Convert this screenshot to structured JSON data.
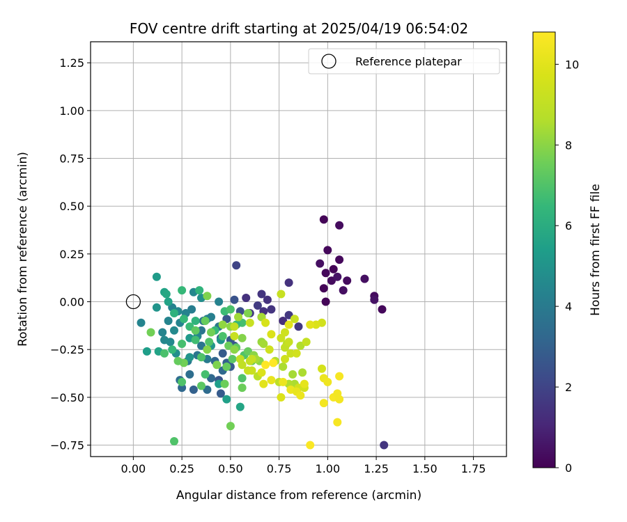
{
  "chart_data": {
    "type": "scatter",
    "title": "FOV centre drift starting at 2025/04/19 06:54:02",
    "xlabel": "Angular distance from reference (arcmin)",
    "ylabel": "Rotation from reference (arcmin)",
    "xlim": [
      -0.22,
      1.92
    ],
    "ylim": [
      -0.81,
      1.36
    ],
    "xticks": [
      0.0,
      0.25,
      0.5,
      0.75,
      1.0,
      1.25,
      1.5,
      1.75
    ],
    "xtick_labels": [
      "0.00",
      "0.25",
      "0.50",
      "0.75",
      "1.00",
      "1.25",
      "1.50",
      "1.75"
    ],
    "yticks": [
      -0.75,
      -0.5,
      -0.25,
      0.0,
      0.25,
      0.5,
      0.75,
      1.0,
      1.25
    ],
    "ytick_labels": [
      "−0.75",
      "−0.50",
      "−0.25",
      "0.00",
      "0.25",
      "0.50",
      "0.75",
      "1.00",
      "1.25"
    ],
    "grid": true,
    "legend": {
      "placement": "top-right",
      "entries": [
        "Reference platepar"
      ]
    },
    "reference_point": {
      "label": "Reference platepar",
      "x": 0.0,
      "y": 0.0
    },
    "colorbar": {
      "label": "Hours from first FF file",
      "colormap": "viridis",
      "range": [
        0,
        10.8
      ],
      "ticks": [
        0,
        2,
        4,
        6,
        8,
        10
      ],
      "tick_labels": [
        "0",
        "2",
        "4",
        "6",
        "8",
        "10"
      ]
    },
    "series": [
      {
        "fields": [
          "x",
          "y",
          "hours"
        ],
        "points": [
          [
            0.98,
            0.43,
            0.1
          ],
          [
            1.06,
            0.4,
            0.3
          ],
          [
            1.0,
            0.27,
            0.2
          ],
          [
            0.96,
            0.2,
            0.4
          ],
          [
            1.06,
            0.22,
            0.2
          ],
          [
            1.03,
            0.17,
            0.1
          ],
          [
            0.99,
            0.15,
            0.2
          ],
          [
            1.02,
            0.11,
            0.3
          ],
          [
            1.05,
            0.13,
            0.5
          ],
          [
            1.1,
            0.11,
            0.3
          ],
          [
            0.98,
            0.07,
            0.1
          ],
          [
            1.08,
            0.06,
            0.4
          ],
          [
            1.19,
            0.12,
            0.4
          ],
          [
            1.24,
            0.03,
            0.3
          ],
          [
            1.24,
            0.01,
            0.5
          ],
          [
            0.99,
            0.0,
            0.1
          ],
          [
            1.28,
            -0.04,
            0.2
          ],
          [
            1.29,
            -0.75,
            1.5
          ],
          [
            0.8,
            0.1,
            1.4
          ],
          [
            0.53,
            0.19,
            2.0
          ],
          [
            0.58,
            0.02,
            1.4
          ],
          [
            0.66,
            0.04,
            1.5
          ],
          [
            0.69,
            0.01,
            1.4
          ],
          [
            0.71,
            -0.04,
            1.5
          ],
          [
            0.64,
            -0.02,
            1.7
          ],
          [
            0.67,
            -0.05,
            1.4
          ],
          [
            0.77,
            -0.1,
            1.3
          ],
          [
            0.85,
            -0.13,
            1.6
          ],
          [
            0.8,
            -0.07,
            1.6
          ],
          [
            0.66,
            -0.08,
            1.6
          ],
          [
            0.6,
            -0.06,
            1.6
          ],
          [
            0.52,
            0.01,
            2.5
          ],
          [
            0.55,
            -0.05,
            2.4
          ],
          [
            0.48,
            -0.09,
            2.6
          ],
          [
            0.5,
            -0.2,
            2.7
          ],
          [
            0.45,
            -0.19,
            2.5
          ],
          [
            0.52,
            -0.23,
            2.6
          ],
          [
            0.46,
            -0.27,
            2.8
          ],
          [
            0.48,
            -0.32,
            3.0
          ],
          [
            0.42,
            -0.31,
            3.2
          ],
          [
            0.46,
            -0.36,
            3.3
          ],
          [
            0.5,
            -0.34,
            2.8
          ],
          [
            0.44,
            -0.41,
            2.6
          ],
          [
            0.4,
            -0.4,
            3.3
          ],
          [
            0.45,
            -0.48,
            2.8
          ],
          [
            0.38,
            -0.46,
            3.4
          ],
          [
            0.31,
            -0.46,
            3.0
          ],
          [
            0.25,
            -0.45,
            3.3
          ],
          [
            0.24,
            -0.41,
            3.5
          ],
          [
            0.29,
            -0.38,
            3.5
          ],
          [
            0.28,
            -0.31,
            4.0
          ],
          [
            0.33,
            -0.28,
            3.8
          ],
          [
            0.38,
            -0.3,
            4.0
          ],
          [
            0.35,
            -0.23,
            3.8
          ],
          [
            0.44,
            -0.13,
            3.9
          ],
          [
            0.35,
            -0.15,
            3.8
          ],
          [
            0.36,
            -0.1,
            3.7
          ],
          [
            0.38,
            -0.09,
            4.2
          ],
          [
            0.4,
            -0.08,
            4.2
          ],
          [
            0.3,
            -0.04,
            4.1
          ],
          [
            0.27,
            -0.06,
            4.3
          ],
          [
            0.23,
            -0.05,
            4.5
          ],
          [
            0.2,
            -0.03,
            4.3
          ],
          [
            0.18,
            -0.1,
            4.4
          ],
          [
            0.24,
            -0.11,
            4.4
          ],
          [
            0.21,
            -0.15,
            4.6
          ],
          [
            0.15,
            -0.16,
            4.4
          ],
          [
            0.16,
            -0.2,
            4.5
          ],
          [
            0.19,
            -0.21,
            4.6
          ],
          [
            0.31,
            0.05,
            4.5
          ],
          [
            0.35,
            0.02,
            4.8
          ],
          [
            0.44,
            0.0,
            4.3
          ],
          [
            0.04,
            -0.11,
            4.4
          ],
          [
            0.33,
            -0.18,
            4.5
          ],
          [
            0.22,
            -0.27,
            4.8
          ],
          [
            0.29,
            -0.29,
            5.0
          ],
          [
            0.12,
            -0.03,
            5.0
          ],
          [
            0.12,
            0.13,
            5.3
          ],
          [
            0.16,
            0.05,
            5.6
          ],
          [
            0.17,
            0.04,
            5.8
          ],
          [
            0.18,
            0.0,
            5.6
          ],
          [
            0.13,
            -0.26,
            5.6
          ],
          [
            0.07,
            -0.26,
            5.4
          ],
          [
            0.29,
            -0.19,
            5.2
          ],
          [
            0.4,
            -0.23,
            5.1
          ],
          [
            0.45,
            -0.2,
            5.0
          ],
          [
            0.44,
            -0.43,
            5.4
          ],
          [
            0.55,
            -0.55,
            5.7
          ],
          [
            0.48,
            -0.51,
            5.5
          ],
          [
            0.25,
            0.06,
            6.5
          ],
          [
            0.34,
            0.06,
            6.3
          ],
          [
            0.21,
            -0.06,
            6.2
          ],
          [
            0.26,
            -0.09,
            6.5
          ],
          [
            0.29,
            -0.13,
            6.6
          ],
          [
            0.32,
            -0.1,
            6.3
          ],
          [
            0.25,
            -0.22,
            6.8
          ],
          [
            0.2,
            -0.25,
            6.5
          ],
          [
            0.16,
            -0.27,
            6.9
          ],
          [
            0.32,
            -0.2,
            6.7
          ],
          [
            0.42,
            -0.15,
            6.5
          ],
          [
            0.47,
            -0.05,
            6.6
          ],
          [
            0.5,
            -0.04,
            6.9
          ],
          [
            0.56,
            -0.11,
            6.8
          ],
          [
            0.53,
            -0.12,
            6.5
          ],
          [
            0.46,
            -0.18,
            6.9
          ],
          [
            0.39,
            -0.21,
            7.0
          ],
          [
            0.35,
            -0.29,
            7.0
          ],
          [
            0.37,
            -0.38,
            6.8
          ],
          [
            0.35,
            -0.44,
            7.2
          ],
          [
            0.25,
            -0.42,
            7.0
          ],
          [
            0.21,
            -0.73,
            7.0
          ],
          [
            0.5,
            -0.65,
            7.6
          ],
          [
            0.47,
            -0.43,
            7.5
          ],
          [
            0.56,
            -0.45,
            7.5
          ],
          [
            0.56,
            -0.4,
            7.0
          ],
          [
            0.51,
            -0.3,
            7.2
          ],
          [
            0.48,
            -0.34,
            7.4
          ],
          [
            0.61,
            -0.31,
            7.4
          ],
          [
            0.57,
            -0.28,
            7.0
          ],
          [
            0.59,
            -0.26,
            7.4
          ],
          [
            0.53,
            -0.24,
            7.3
          ],
          [
            0.49,
            -0.23,
            7.5
          ],
          [
            0.4,
            -0.16,
            7.6
          ],
          [
            0.37,
            -0.1,
            7.4
          ],
          [
            0.32,
            -0.15,
            7.3
          ],
          [
            0.38,
            0.03,
            7.8
          ],
          [
            0.26,
            -0.32,
            7.6
          ],
          [
            0.23,
            -0.31,
            7.4
          ],
          [
            0.09,
            -0.16,
            7.6
          ],
          [
            0.38,
            -0.25,
            7.9
          ],
          [
            0.43,
            -0.33,
            7.8
          ],
          [
            0.52,
            -0.25,
            8.0
          ],
          [
            0.56,
            -0.19,
            7.9
          ],
          [
            0.62,
            -0.28,
            8.0
          ],
          [
            0.65,
            -0.31,
            8.0
          ],
          [
            0.66,
            -0.21,
            8.2
          ],
          [
            0.59,
            -0.06,
            7.8
          ],
          [
            0.5,
            -0.13,
            8.0
          ],
          [
            0.46,
            -0.12,
            8.1
          ],
          [
            0.54,
            -0.08,
            8.3
          ],
          [
            0.66,
            -0.08,
            8.4
          ],
          [
            0.63,
            -0.3,
            8.4
          ],
          [
            0.67,
            -0.22,
            8.4
          ],
          [
            0.73,
            -0.31,
            8.6
          ],
          [
            0.77,
            -0.34,
            8.5
          ],
          [
            0.79,
            -0.22,
            8.7
          ],
          [
            0.82,
            -0.38,
            8.4
          ],
          [
            0.86,
            -0.23,
            8.6
          ],
          [
            0.83,
            -0.43,
            8.5
          ],
          [
            0.87,
            -0.37,
            8.5
          ],
          [
            0.8,
            -0.43,
            8.6
          ],
          [
            0.75,
            -0.42,
            8.9
          ],
          [
            0.64,
            -0.39,
            8.8
          ],
          [
            0.6,
            -0.31,
            9.0
          ],
          [
            0.61,
            -0.3,
            9.2
          ],
          [
            0.55,
            -0.3,
            9.0
          ],
          [
            0.56,
            -0.33,
            9.0
          ],
          [
            0.59,
            -0.36,
            9.2
          ],
          [
            0.61,
            -0.36,
            9.3
          ],
          [
            0.52,
            -0.18,
            9.2
          ],
          [
            0.52,
            -0.13,
            9.0
          ],
          [
            0.6,
            -0.11,
            9.2
          ],
          [
            0.7,
            -0.25,
            9.4
          ],
          [
            0.76,
            -0.19,
            9.3
          ],
          [
            0.78,
            -0.16,
            9.4
          ],
          [
            0.78,
            -0.24,
            9.0
          ],
          [
            0.81,
            -0.27,
            9.3
          ],
          [
            0.8,
            -0.21,
            9.2
          ],
          [
            0.78,
            -0.3,
            9.4
          ],
          [
            0.84,
            -0.27,
            9.5
          ],
          [
            0.76,
            0.04,
            9.2
          ],
          [
            0.83,
            -0.09,
            9.2
          ],
          [
            0.89,
            -0.21,
            9.1
          ],
          [
            0.88,
            -0.45,
            9.5
          ],
          [
            0.85,
            -0.45,
            9.5
          ],
          [
            0.76,
            -0.5,
            9.8
          ],
          [
            0.97,
            -0.35,
            9.6
          ],
          [
            0.97,
            -0.11,
            9.5
          ],
          [
            0.94,
            -0.12,
            9.8
          ],
          [
            0.91,
            -0.12,
            10.0
          ],
          [
            0.8,
            -0.12,
            10.0
          ],
          [
            0.71,
            -0.17,
            9.8
          ],
          [
            0.68,
            -0.11,
            9.7
          ],
          [
            0.66,
            -0.37,
            9.8
          ],
          [
            0.67,
            -0.43,
            10.0
          ],
          [
            0.71,
            -0.41,
            10.2
          ],
          [
            0.77,
            -0.42,
            10.3
          ],
          [
            0.81,
            -0.46,
            10.3
          ],
          [
            0.84,
            -0.47,
            10.2
          ],
          [
            0.86,
            -0.49,
            10.3
          ],
          [
            0.88,
            -0.43,
            10.1
          ],
          [
            0.98,
            -0.53,
            10.5
          ],
          [
            1.03,
            -0.5,
            10.6
          ],
          [
            1.05,
            -0.48,
            10.5
          ],
          [
            1.06,
            -0.51,
            10.5
          ],
          [
            0.98,
            -0.4,
            10.3
          ],
          [
            1.0,
            -0.42,
            10.4
          ],
          [
            1.06,
            -0.39,
            10.6
          ],
          [
            1.05,
            -0.63,
            10.6
          ],
          [
            0.91,
            -0.75,
            10.7
          ],
          [
            0.72,
            -0.32,
            10.8
          ],
          [
            0.68,
            -0.33,
            10.8
          ]
        ]
      }
    ]
  }
}
